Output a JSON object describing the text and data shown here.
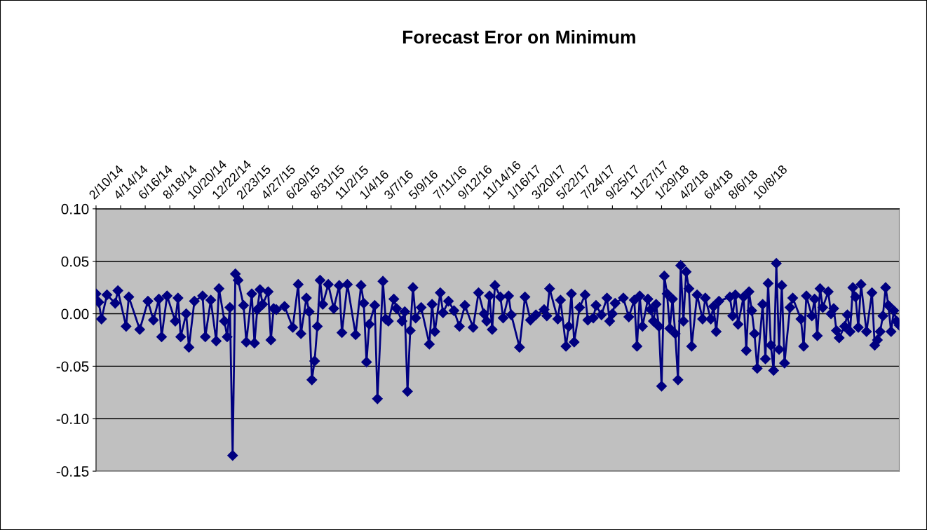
{
  "chart_data": {
    "type": "line",
    "title": "Forecast Eror on Minimum",
    "x": [
      "2014-02-10",
      "2014-02-17",
      "2014-02-24",
      "2014-03-10",
      "2014-03-31",
      "2014-04-07",
      "2014-04-28",
      "2014-05-05",
      "2014-06-02",
      "2014-06-23",
      "2014-07-07",
      "2014-07-21",
      "2014-07-28",
      "2014-08-11",
      "2014-09-01",
      "2014-09-08",
      "2014-09-15",
      "2014-09-29",
      "2014-10-06",
      "2014-10-20",
      "2014-11-10",
      "2014-11-17",
      "2014-12-01",
      "2014-12-15",
      "2014-12-22",
      "2015-01-05",
      "2015-01-12",
      "2015-01-19",
      "2015-01-26",
      "2015-02-02",
      "2015-02-09",
      "2015-02-23",
      "2015-03-02",
      "2015-03-16",
      "2015-03-23",
      "2015-03-30",
      "2015-04-06",
      "2015-04-13",
      "2015-04-27",
      "2015-05-04",
      "2015-05-11",
      "2015-05-18",
      "2015-06-08",
      "2015-06-29",
      "2015-07-13",
      "2015-07-20",
      "2015-08-03",
      "2015-08-10",
      "2015-08-17",
      "2015-08-24",
      "2015-08-31",
      "2015-09-07",
      "2015-09-14",
      "2015-09-28",
      "2015-10-12",
      "2015-10-26",
      "2015-11-02",
      "2015-11-16",
      "2015-12-07",
      "2015-12-21",
      "2015-12-28",
      "2016-01-04",
      "2016-01-11",
      "2016-01-25",
      "2016-02-01",
      "2016-02-15",
      "2016-02-22",
      "2016-02-29",
      "2016-03-14",
      "2016-03-21",
      "2016-04-04",
      "2016-04-11",
      "2016-04-18",
      "2016-04-25",
      "2016-05-02",
      "2016-05-09",
      "2016-05-23",
      "2016-06-13",
      "2016-06-20",
      "2016-06-27",
      "2016-07-11",
      "2016-07-18",
      "2016-08-01",
      "2016-08-15",
      "2016-08-29",
      "2016-09-12",
      "2016-10-03",
      "2016-10-17",
      "2016-10-31",
      "2016-11-07",
      "2016-11-14",
      "2016-11-21",
      "2016-11-28",
      "2016-12-12",
      "2016-12-19",
      "2017-01-02",
      "2017-01-09",
      "2017-01-30",
      "2017-02-13",
      "2017-02-27",
      "2017-03-13",
      "2017-04-03",
      "2017-04-10",
      "2017-04-17",
      "2017-05-08",
      "2017-05-15",
      "2017-05-29",
      "2017-06-05",
      "2017-06-12",
      "2017-06-19",
      "2017-07-03",
      "2017-07-17",
      "2017-07-24",
      "2017-08-07",
      "2017-08-14",
      "2017-08-28",
      "2017-09-11",
      "2017-09-18",
      "2017-09-25",
      "2017-10-02",
      "2017-10-23",
      "2017-11-06",
      "2017-11-20",
      "2017-11-27",
      "2017-12-04",
      "2017-12-11",
      "2017-12-25",
      "2018-01-01",
      "2018-01-08",
      "2018-01-15",
      "2018-01-22",
      "2018-01-29",
      "2018-02-05",
      "2018-02-12",
      "2018-02-19",
      "2018-02-26",
      "2018-03-05",
      "2018-03-12",
      "2018-03-19",
      "2018-03-26",
      "2018-04-02",
      "2018-04-09",
      "2018-04-16",
      "2018-04-30",
      "2018-05-14",
      "2018-05-21",
      "2018-06-04",
      "2018-06-11",
      "2018-06-18",
      "2018-06-25",
      "2018-07-23",
      "2018-07-30",
      "2018-08-06",
      "2018-08-13",
      "2018-08-27",
      "2018-09-03",
      "2018-09-10",
      "2018-09-17",
      "2018-09-24",
      "2018-10-01",
      "2018-10-15",
      "2018-10-22",
      "2018-10-29",
      "2018-11-05",
      "2018-11-12",
      "2018-11-19",
      "2018-11-26",
      "2018-12-03",
      "2018-12-10",
      "2018-12-24",
      "2018-12-31",
      "2019-01-21",
      "2019-01-28",
      "2019-02-04",
      "2019-02-18",
      "2019-02-25",
      "2019-03-04",
      "2019-03-11",
      "2019-03-18",
      "2019-04-01",
      "2019-04-08",
      "2019-04-15",
      "2019-04-22",
      "2019-04-29",
      "2019-05-13",
      "2019-05-20",
      "2019-05-27",
      "2019-06-03",
      "2019-06-10",
      "2019-06-17",
      "2019-06-24",
      "2019-07-08",
      "2019-07-22",
      "2019-07-29",
      "2019-08-05",
      "2019-08-12",
      "2019-08-19",
      "2019-08-26",
      "2019-09-02",
      "2019-09-09",
      "2019-09-16",
      "2019-09-23",
      "2019-09-30"
    ],
    "series": [
      {
        "color": "#000080",
        "values": [
          0.019,
          0.011,
          -0.005,
          0.018,
          0.01,
          0.022,
          -0.012,
          0.016,
          -0.015,
          0.012,
          -0.006,
          0.014,
          -0.022,
          0.017,
          -0.007,
          0.015,
          -0.022,
          0.0,
          -0.032,
          0.012,
          0.017,
          -0.022,
          0.013,
          -0.026,
          0.024,
          -0.007,
          -0.022,
          0.006,
          -0.135,
          0.038,
          0.032,
          0.008,
          -0.027,
          0.019,
          -0.028,
          0.004,
          0.023,
          0.009,
          0.021,
          -0.025,
          0.005,
          0.004,
          0.007,
          -0.013,
          0.028,
          -0.019,
          0.015,
          0.002,
          -0.063,
          -0.045,
          -0.012,
          0.032,
          0.009,
          0.028,
          0.005,
          0.027,
          -0.018,
          0.028,
          -0.02,
          0.027,
          0.01,
          -0.046,
          -0.01,
          0.008,
          -0.081,
          0.031,
          -0.005,
          -0.007,
          0.014,
          0.005,
          -0.007,
          0.002,
          -0.074,
          -0.016,
          0.025,
          -0.004,
          0.006,
          -0.029,
          0.009,
          -0.017,
          0.02,
          0.001,
          0.012,
          0.003,
          -0.012,
          0.008,
          -0.013,
          0.02,
          0.0,
          -0.007,
          0.017,
          -0.015,
          0.027,
          0.016,
          -0.004,
          0.017,
          -0.001,
          -0.032,
          0.016,
          -0.006,
          -0.001,
          0.004,
          -0.002,
          0.024,
          -0.005,
          0.013,
          -0.031,
          -0.012,
          0.019,
          -0.027,
          0.006,
          0.018,
          -0.006,
          -0.004,
          0.008,
          -0.001,
          0.015,
          -0.007,
          0.0,
          0.01,
          0.015,
          -0.003,
          0.013,
          -0.031,
          0.017,
          -0.012,
          0.014,
          0.004,
          -0.007,
          0.009,
          -0.012,
          -0.069,
          0.036,
          0.019,
          -0.014,
          0.014,
          -0.019,
          -0.063,
          0.046,
          -0.007,
          0.04,
          0.024,
          -0.031,
          0.018,
          -0.005,
          0.015,
          -0.005,
          0.007,
          -0.017,
          0.012,
          0.016,
          -0.002,
          0.018,
          -0.01,
          0.016,
          -0.035,
          0.021,
          0.003,
          -0.019,
          -0.052,
          0.009,
          -0.043,
          0.029,
          -0.03,
          -0.054,
          0.048,
          -0.034,
          0.027,
          -0.047,
          0.006,
          0.015,
          -0.005,
          -0.031,
          0.017,
          -0.002,
          0.014,
          -0.021,
          0.024,
          0.006,
          0.021,
          0.0,
          0.005,
          -0.016,
          -0.023,
          -0.012,
          -0.001,
          -0.017,
          0.025,
          0.016,
          -0.013,
          0.028,
          -0.017,
          0.02,
          -0.03,
          -0.025,
          -0.017,
          -0.002,
          0.025,
          0.008,
          -0.017,
          0.003,
          -0.007,
          -0.011
        ]
      }
    ],
    "xlim": [
      "2014-02-10",
      "2019-09-30"
    ],
    "xticks": [
      {
        "value": "2014-02-10",
        "label": "2/10/14"
      },
      {
        "value": "2014-04-14",
        "label": "4/14/14"
      },
      {
        "value": "2014-06-16",
        "label": "6/16/14"
      },
      {
        "value": "2014-08-18",
        "label": "8/18/14"
      },
      {
        "value": "2014-10-20",
        "label": "10/20/14"
      },
      {
        "value": "2014-12-22",
        "label": "12/22/14"
      },
      {
        "value": "2015-02-23",
        "label": "2/23/15"
      },
      {
        "value": "2015-04-27",
        "label": "4/27/15"
      },
      {
        "value": "2015-06-29",
        "label": "6/29/15"
      },
      {
        "value": "2015-08-31",
        "label": "8/31/15"
      },
      {
        "value": "2015-11-02",
        "label": "11/2/15"
      },
      {
        "value": "2016-01-04",
        "label": "1/4/16"
      },
      {
        "value": "2016-03-07",
        "label": "3/7/16"
      },
      {
        "value": "2016-05-09",
        "label": "5/9/16"
      },
      {
        "value": "2016-07-11",
        "label": "7/11/16"
      },
      {
        "value": "2016-09-12",
        "label": "9/12/16"
      },
      {
        "value": "2016-11-14",
        "label": "11/14/16"
      },
      {
        "value": "2017-01-16",
        "label": "1/16/17"
      },
      {
        "value": "2017-03-20",
        "label": "3/20/17"
      },
      {
        "value": "2017-05-22",
        "label": "5/22/17"
      },
      {
        "value": "2017-07-24",
        "label": "7/24/17"
      },
      {
        "value": "2017-09-25",
        "label": "9/25/17"
      },
      {
        "value": "2017-11-27",
        "label": "11/27/17"
      },
      {
        "value": "2018-01-29",
        "label": "1/29/18"
      },
      {
        "value": "2018-04-02",
        "label": "4/2/18"
      },
      {
        "value": "2018-06-04",
        "label": "6/4/18"
      },
      {
        "value": "2018-08-06",
        "label": "8/6/18"
      },
      {
        "value": "2018-10-08",
        "label": "10/8/18"
      }
    ],
    "ylim": [
      -0.15,
      0.1
    ],
    "yticks": [
      {
        "value": 0.1,
        "label": "0.10"
      },
      {
        "value": 0.05,
        "label": "0.05"
      },
      {
        "value": 0.0,
        "label": "0.00"
      },
      {
        "value": -0.05,
        "label": "-0.05"
      },
      {
        "value": -0.1,
        "label": "-0.10"
      },
      {
        "value": -0.15,
        "label": "-0.15"
      }
    ],
    "grid": "y",
    "marker": "diamond",
    "line_style": "solid"
  }
}
